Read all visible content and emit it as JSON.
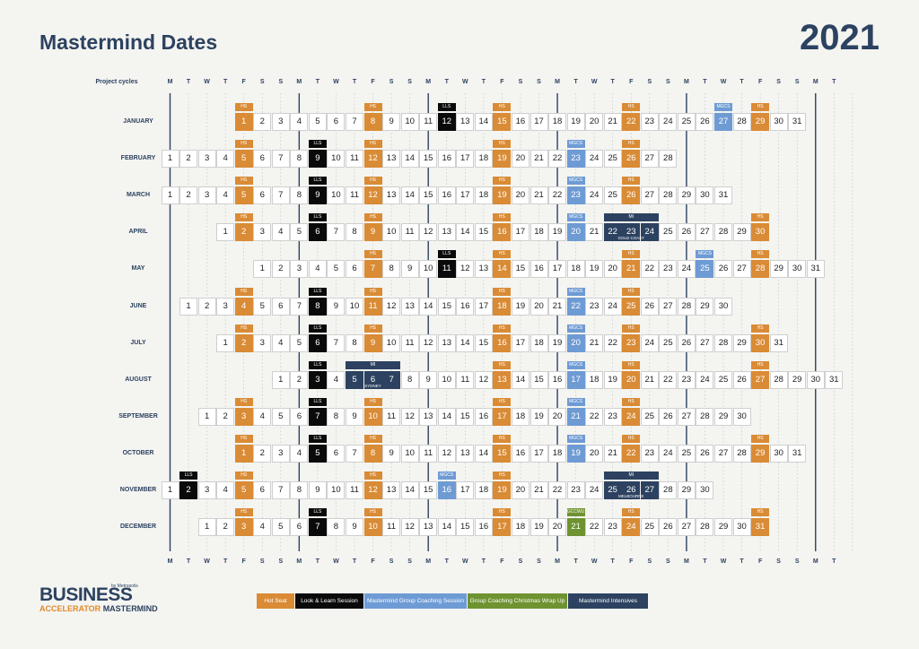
{
  "title": "Mastermind Dates",
  "year": "2021",
  "row_header": "Project cycles",
  "weekday_letters": [
    "M",
    "T",
    "W",
    "T",
    "F",
    "S",
    "S"
  ],
  "colors": {
    "HS": "#d98b35",
    "LLS": "#0a0a0a",
    "MGCS": "#6e9bd4",
    "GCCWU": "#6e9330",
    "MI": "#2c4260"
  },
  "legend": [
    {
      "key": "HS",
      "label": "Hot Seat"
    },
    {
      "key": "LLS",
      "label": "Look & Learn Session"
    },
    {
      "key": "MGCS",
      "label": "Mastermind Group Coaching Session"
    },
    {
      "key": "GCCWU",
      "label": "Group Coaching Christmas Wrap Up"
    },
    {
      "key": "MI",
      "label": "Mastermind Intensives"
    }
  ],
  "months": [
    {
      "name": "JANUARY",
      "days": 31,
      "start_offset": 4,
      "events": [
        [
          1,
          "HS"
        ],
        [
          8,
          "HS"
        ],
        [
          12,
          "LLS"
        ],
        [
          15,
          "HS"
        ],
        [
          22,
          "HS"
        ],
        [
          27,
          "MGCS"
        ],
        [
          29,
          "HS"
        ]
      ],
      "intensive": null
    },
    {
      "name": "FEBRUARY",
      "days": 28,
      "start_offset": 0,
      "events": [
        [
          5,
          "HS"
        ],
        [
          9,
          "LLS"
        ],
        [
          12,
          "HS"
        ],
        [
          19,
          "HS"
        ],
        [
          23,
          "MGCS"
        ],
        [
          26,
          "HS"
        ]
      ],
      "intensive": null
    },
    {
      "name": "MARCH",
      "days": 31,
      "start_offset": 0,
      "events": [
        [
          5,
          "HS"
        ],
        [
          9,
          "LLS"
        ],
        [
          12,
          "HS"
        ],
        [
          19,
          "HS"
        ],
        [
          23,
          "MGCS"
        ],
        [
          26,
          "HS"
        ]
      ],
      "intensive": null
    },
    {
      "name": "APRIL",
      "days": 30,
      "start_offset": 3,
      "events": [
        [
          2,
          "HS"
        ],
        [
          6,
          "LLS"
        ],
        [
          9,
          "HS"
        ],
        [
          16,
          "HS"
        ],
        [
          20,
          "MGCS"
        ],
        [
          30,
          "HS"
        ]
      ],
      "intensive": {
        "from": 22,
        "to": 24,
        "tag": "MI",
        "place": "GOLD COAST"
      }
    },
    {
      "name": "MAY",
      "days": 31,
      "start_offset": 5,
      "events": [
        [
          7,
          "HS"
        ],
        [
          11,
          "LLS"
        ],
        [
          14,
          "HS"
        ],
        [
          21,
          "HS"
        ],
        [
          25,
          "MGCS"
        ],
        [
          28,
          "HS"
        ]
      ],
      "intensive": null
    },
    {
      "name": "JUNE",
      "days": 30,
      "start_offset": 1,
      "events": [
        [
          4,
          "HS"
        ],
        [
          8,
          "LLS"
        ],
        [
          11,
          "HS"
        ],
        [
          18,
          "HS"
        ],
        [
          22,
          "MGCS"
        ],
        [
          25,
          "HS"
        ]
      ],
      "intensive": null
    },
    {
      "name": "JULY",
      "days": 31,
      "start_offset": 3,
      "events": [
        [
          2,
          "HS"
        ],
        [
          6,
          "LLS"
        ],
        [
          9,
          "HS"
        ],
        [
          16,
          "HS"
        ],
        [
          20,
          "MGCS"
        ],
        [
          23,
          "HS"
        ],
        [
          30,
          "HS"
        ]
      ],
      "intensive": null
    },
    {
      "name": "AUGUST",
      "days": 31,
      "start_offset": 6,
      "events": [
        [
          3,
          "LLS"
        ],
        [
          13,
          "HS"
        ],
        [
          17,
          "MGCS"
        ],
        [
          20,
          "HS"
        ],
        [
          27,
          "HS"
        ]
      ],
      "intensive": {
        "from": 5,
        "to": 7,
        "tag": "MI",
        "place": "SYDNEY"
      }
    },
    {
      "name": "SEPTEMBER",
      "days": 30,
      "start_offset": 2,
      "events": [
        [
          3,
          "HS"
        ],
        [
          7,
          "LLS"
        ],
        [
          10,
          "HS"
        ],
        [
          17,
          "HS"
        ],
        [
          21,
          "MGCS"
        ],
        [
          24,
          "HS"
        ]
      ],
      "intensive": null
    },
    {
      "name": "OCTOBER",
      "days": 31,
      "start_offset": 4,
      "events": [
        [
          1,
          "HS"
        ],
        [
          5,
          "LLS"
        ],
        [
          8,
          "HS"
        ],
        [
          15,
          "HS"
        ],
        [
          19,
          "MGCS"
        ],
        [
          22,
          "HS"
        ],
        [
          29,
          "HS"
        ]
      ],
      "intensive": null
    },
    {
      "name": "NOVEMBER",
      "days": 30,
      "start_offset": 0,
      "events": [
        [
          2,
          "LLS"
        ],
        [
          5,
          "HS"
        ],
        [
          12,
          "HS"
        ],
        [
          16,
          "MGCS"
        ],
        [
          19,
          "HS"
        ]
      ],
      "intensive": {
        "from": 25,
        "to": 27,
        "tag": "MI",
        "place": "MELBOURNE"
      }
    },
    {
      "name": "DECEMBER",
      "days": 31,
      "start_offset": 2,
      "events": [
        [
          3,
          "HS"
        ],
        [
          7,
          "LLS"
        ],
        [
          10,
          "HS"
        ],
        [
          17,
          "HS"
        ],
        [
          21,
          "GCCWU"
        ],
        [
          24,
          "HS"
        ],
        [
          31,
          "HS"
        ]
      ],
      "intensive": null
    }
  ],
  "logo": {
    "line1": "BUSINESS",
    "line2_a": "ACCELERATOR",
    "line2_b": "MASTERMIND",
    "by": "by Metropolis"
  }
}
